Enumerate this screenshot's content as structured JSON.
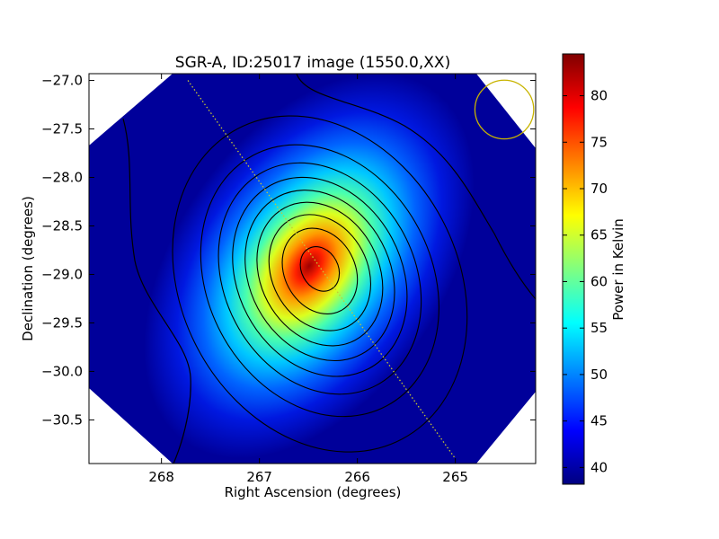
{
  "chart_data": {
    "type": "heatmap",
    "title": "SGR-A, ID:25017 image (1550.0,XX)",
    "xlabel": "Right Ascension (degrees)",
    "ylabel": "Declination (degrees)",
    "xlim": [
      268.74,
      264.18
    ],
    "ylim": [
      -30.95,
      -26.93
    ],
    "x_ticks": [
      268,
      267,
      266,
      265
    ],
    "x_tick_labels": [
      "268",
      "267",
      "266",
      "265"
    ],
    "y_ticks": [
      -27.0,
      -27.5,
      -28.0,
      -28.5,
      -29.0,
      -29.5,
      -30.0,
      -30.5
    ],
    "y_tick_labels": [
      "−27.0",
      "−27.5",
      "−28.0",
      "−28.5",
      "−29.0",
      "−29.5",
      "−30.0",
      "−30.5"
    ],
    "colorbar": {
      "label": "Power in Kelvin",
      "range": [
        38.2,
        84.5
      ],
      "ticks": [
        40,
        45,
        50,
        55,
        60,
        65,
        70,
        75,
        80
      ],
      "tick_labels": [
        "40",
        "45",
        "50",
        "55",
        "60",
        "65",
        "70",
        "75",
        "80"
      ],
      "colormap": "jet"
    },
    "peak": {
      "ra": 266.42,
      "dec": -28.92,
      "value": 84
    },
    "background_level": 38.5,
    "contour_levels": [
      42,
      47,
      52,
      57,
      62,
      67,
      72,
      77,
      82
    ],
    "galactic_plane": {
      "color": "#c8c832",
      "points": [
        [
          267.73,
          -27.0
        ],
        [
          265.0,
          -30.9
        ]
      ]
    },
    "beam_circle": {
      "ra": 264.5,
      "dec": -27.3,
      "radius_deg": 0.3,
      "color": "#c8b400"
    }
  }
}
